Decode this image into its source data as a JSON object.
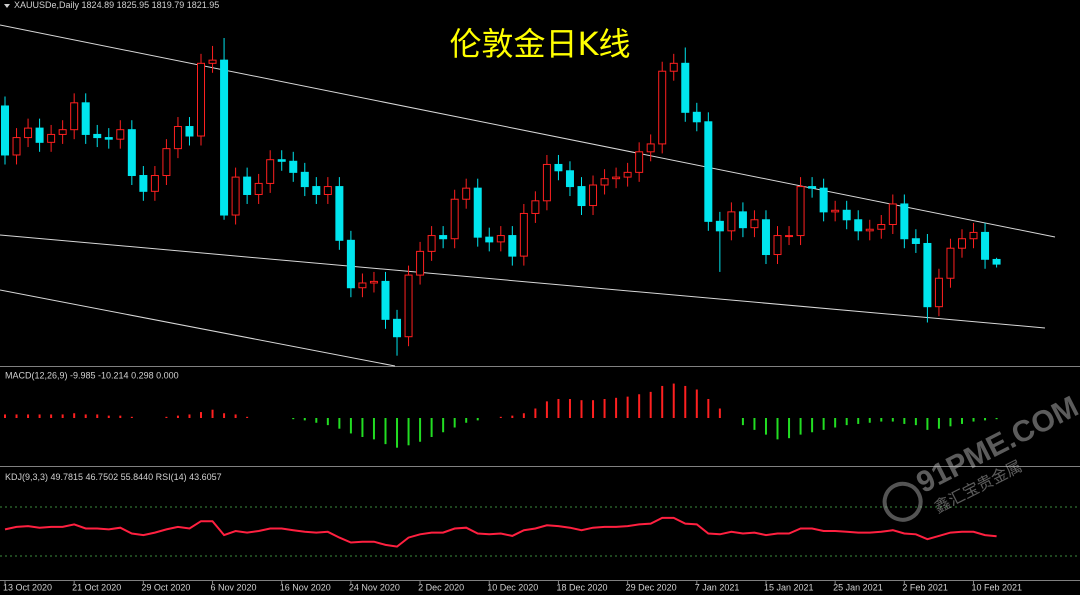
{
  "chart_data": {
    "type": "candlestick",
    "symbol": "XAUUSDe,Daily",
    "title": "伦敦金日K线",
    "categories": [
      "13 Oct 2020",
      null,
      null,
      null,
      null,
      null,
      "21 Oct 2020",
      null,
      null,
      null,
      null,
      null,
      "29 Oct 2020",
      null,
      null,
      null,
      null,
      null,
      "6 Nov 2020",
      null,
      null,
      null,
      null,
      null,
      "16 Nov 2020",
      null,
      null,
      null,
      null,
      null,
      "24 Nov 2020",
      null,
      null,
      null,
      null,
      null,
      "2 Dec 2020",
      null,
      null,
      null,
      null,
      null,
      "10 Dec 2020",
      null,
      null,
      null,
      null,
      null,
      "18 Dec 2020",
      null,
      null,
      null,
      null,
      null,
      "29 Dec 2020",
      null,
      null,
      null,
      null,
      null,
      "7 Jan 2021",
      null,
      null,
      null,
      null,
      null,
      "15 Jan 2021",
      null,
      null,
      null,
      null,
      null,
      "25 Jan 2021",
      null,
      null,
      null,
      null,
      null,
      "2 Feb 2021",
      null,
      null,
      null,
      null,
      null,
      "10 Feb 2021",
      null,
      null
    ],
    "open": [
      1922,
      1891,
      1902,
      1908,
      1899,
      1904,
      1907,
      1924,
      1904,
      1902,
      1901,
      1907,
      1878,
      1868,
      1878,
      1895,
      1909,
      1903,
      1949,
      1951,
      1853,
      1877,
      1866,
      1873,
      1888,
      1887,
      1880,
      1871,
      1866,
      1871,
      1837,
      1807,
      1810,
      1811,
      1787,
      1776,
      1815,
      1830,
      1840,
      1838,
      1863,
      1870,
      1839,
      1836,
      1840,
      1827,
      1854,
      1862,
      1885,
      1881,
      1871,
      1859,
      1872,
      1876,
      1877,
      1880,
      1893,
      1898,
      1944,
      1949,
      1918,
      1912,
      1849,
      1843,
      1855,
      1845,
      1850,
      1828,
      1840,
      1840,
      1871,
      1870,
      1855,
      1856,
      1850,
      1843,
      1844,
      1847,
      1860,
      1838,
      1835,
      1795,
      1813,
      1832,
      1838,
      1842,
      1824.89
    ],
    "high": [
      1928,
      1908,
      1914,
      1914,
      1910,
      1913,
      1930,
      1930,
      1910,
      1908,
      1913,
      1913,
      1884,
      1884,
      1901,
      1915,
      1915,
      1955,
      1960,
      1965,
      1883,
      1883,
      1879,
      1894,
      1894,
      1893,
      1886,
      1877,
      1877,
      1877,
      1843,
      1816,
      1817,
      1817,
      1793,
      1821,
      1836,
      1846,
      1846,
      1869,
      1876,
      1876,
      1845,
      1846,
      1846,
      1860,
      1868,
      1891,
      1891,
      1887,
      1877,
      1878,
      1882,
      1883,
      1886,
      1899,
      1904,
      1950,
      1955,
      1959,
      1924,
      1918,
      1855,
      1861,
      1861,
      1856,
      1856,
      1846,
      1846,
      1877,
      1877,
      1876,
      1862,
      1862,
      1856,
      1850,
      1853,
      1866,
      1866,
      1844,
      1841,
      1819,
      1838,
      1844,
      1848,
      1848,
      1825.95
    ],
    "low": [
      1885,
      1885,
      1896,
      1893,
      1893,
      1898,
      1901,
      1898,
      1896,
      1895,
      1895,
      1872,
      1862,
      1862,
      1872,
      1889,
      1897,
      1897,
      1943,
      1850,
      1847,
      1860,
      1860,
      1867,
      1881,
      1874,
      1865,
      1860,
      1860,
      1831,
      1801,
      1801,
      1804,
      1781,
      1764,
      1770,
      1809,
      1824,
      1832,
      1832,
      1857,
      1833,
      1830,
      1830,
      1821,
      1821,
      1848,
      1856,
      1875,
      1865,
      1853,
      1853,
      1866,
      1870,
      1871,
      1874,
      1887,
      1892,
      1938,
      1912,
      1906,
      1843,
      1817,
      1837,
      1839,
      1839,
      1822,
      1822,
      1834,
      1834,
      1864,
      1849,
      1849,
      1844,
      1837,
      1837,
      1838,
      1841,
      1832,
      1829,
      1785,
      1789,
      1807,
      1826,
      1832,
      1819,
      1819.79
    ],
    "close": [
      1891,
      1902,
      1908,
      1899,
      1904,
      1907,
      1924,
      1904,
      1902,
      1901,
      1907,
      1878,
      1868,
      1878,
      1895,
      1909,
      1903,
      1949,
      1951,
      1853,
      1877,
      1866,
      1873,
      1888,
      1887,
      1880,
      1871,
      1866,
      1871,
      1837,
      1807,
      1810,
      1811,
      1787,
      1776,
      1815,
      1830,
      1840,
      1838,
      1863,
      1870,
      1839,
      1836,
      1840,
      1827,
      1854,
      1862,
      1885,
      1881,
      1871,
      1859,
      1872,
      1876,
      1877,
      1880,
      1893,
      1898,
      1944,
      1949,
      1918,
      1912,
      1849,
      1843,
      1855,
      1845,
      1850,
      1828,
      1840,
      1840,
      1871,
      1870,
      1855,
      1856,
      1850,
      1843,
      1844,
      1847,
      1860,
      1838,
      1835,
      1795,
      1813,
      1832,
      1838,
      1842,
      1825,
      1821.95
    ],
    "up_color": "#ff2020",
    "down_color": "#00e5ee",
    "ylim": [
      1760,
      1984
    ],
    "macd": {
      "label": "MACD(12,26,9) -9.985 -10.214 0.298 0.000",
      "ylim": [
        -32,
        32
      ],
      "pos_color": "#ff2020",
      "neg_color": "#22dd22",
      "values": [
        3,
        3,
        3,
        3,
        3,
        3,
        4,
        3,
        3,
        2,
        2,
        1,
        0,
        0,
        1,
        2,
        3,
        5,
        7,
        4,
        3,
        1,
        0,
        0,
        0,
        -1,
        -2,
        -4,
        -6,
        -9,
        -13,
        -16,
        -18,
        -22,
        -25,
        -23,
        -20,
        -16,
        -12,
        -8,
        -4,
        -2,
        0,
        1,
        2,
        4,
        8,
        14,
        16,
        16,
        15,
        15,
        16,
        17,
        18,
        20,
        22,
        27,
        29,
        27,
        24,
        16,
        8,
        0,
        -6,
        -10,
        -14,
        -18,
        -17,
        -14,
        -12,
        -10,
        -8,
        -6,
        -5,
        -4,
        -3,
        -3,
        -5,
        -6,
        -10,
        -9,
        -7,
        -5,
        -3,
        -2,
        -1
      ]
    },
    "rsi": {
      "label": "KDJ(9,3,3) 49.7815 46.7502 55.8440 RSI(14)",
      "ylim": [
        0,
        100
      ],
      "color": "#ff2040",
      "values": [
        52,
        55,
        56,
        54,
        55,
        55,
        58,
        53,
        53,
        52,
        54,
        47,
        45,
        48,
        52,
        55,
        53,
        62,
        62,
        45,
        50,
        48,
        50,
        53,
        53,
        51,
        49,
        48,
        49,
        42,
        36,
        37,
        37,
        33,
        31,
        42,
        46,
        48,
        48,
        53,
        54,
        47,
        46,
        47,
        44,
        51,
        53,
        57,
        56,
        54,
        51,
        54,
        55,
        55,
        56,
        58,
        59,
        66,
        66,
        59,
        58,
        47,
        46,
        49,
        47,
        48,
        45,
        47,
        47,
        53,
        53,
        50,
        50,
        49,
        48,
        48,
        49,
        51,
        47,
        46,
        40,
        44,
        48,
        49,
        49,
        45,
        43.6057
      ]
    }
  },
  "watermark": {
    "brand": "91PME.COM",
    "sub": "鑫汇宝贵金属"
  }
}
